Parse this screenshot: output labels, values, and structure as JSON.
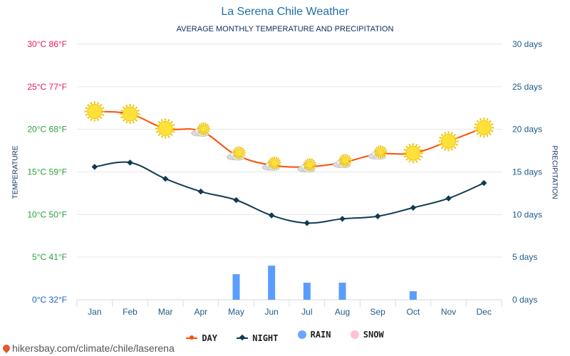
{
  "title": "La Serena Chile Weather",
  "subtitle": "AVERAGE MONTHLY TEMPERATURE AND PRECIPITATION",
  "source": "hikersbay.com/climate/chile/laserena",
  "colors": {
    "day": "#ff4e00",
    "night": "#0e3a52",
    "rain": "#5b9cff",
    "snow": "#ffb6c8",
    "left_axis_hot": "#e8175d",
    "left_axis_mild": "#2ca03c",
    "left_axis_cold": "#1f5fbf",
    "right_axis": "#1d5a8a"
  },
  "chart_data": {
    "type": "line",
    "title": "La Serena Chile Weather",
    "subtitle": "AVERAGE MONTHLY TEMPERATURE AND PRECIPITATION",
    "ylabel_left": "TEMPERATURE",
    "ylabel_right": "PRECIPITATION",
    "categories": [
      "Jan",
      "Feb",
      "Mar",
      "Apr",
      "May",
      "Jun",
      "Jul",
      "Aug",
      "Sep",
      "Oct",
      "Nov",
      "Dec"
    ],
    "ylim_left": [
      0,
      30
    ],
    "ylim_right": [
      0,
      30
    ],
    "left_ticks": [
      "0°C 32°F",
      "5°C 41°F",
      "10°C 50°F",
      "15°C 59°F",
      "20°C 68°F",
      "25°C 77°F",
      "30°C 86°F"
    ],
    "right_ticks": [
      "0 days",
      "5 days",
      "10 days",
      "15 days",
      "20 days",
      "25 days",
      "30 days"
    ],
    "series": [
      {
        "name": "DAY",
        "type": "line",
        "values": [
          22.1,
          21.8,
          20.1,
          19.8,
          17.0,
          15.8,
          15.6,
          16.1,
          17.1,
          17.2,
          18.6,
          20.2
        ],
        "icons": [
          "sun",
          "sun",
          "sun",
          "partly-cloudy",
          "partly-cloudy",
          "partly-cloudy",
          "partly-cloudy",
          "partly-cloudy",
          "partly-cloudy",
          "sun",
          "sun",
          "sun"
        ]
      },
      {
        "name": "NIGHT",
        "type": "line",
        "values": [
          15.6,
          16.1,
          14.2,
          12.7,
          11.7,
          9.9,
          9.0,
          9.5,
          9.8,
          10.8,
          11.9,
          13.7
        ]
      },
      {
        "name": "RAIN",
        "type": "bar",
        "values": [
          0,
          0,
          0,
          0,
          3,
          4,
          2,
          2,
          0,
          1,
          0,
          0
        ]
      },
      {
        "name": "SNOW",
        "type": "bar",
        "values": [
          0,
          0,
          0,
          0,
          0,
          0,
          0,
          0,
          0,
          0,
          0,
          0
        ]
      }
    ],
    "legend": [
      "DAY",
      "NIGHT",
      "RAIN",
      "SNOW"
    ]
  }
}
